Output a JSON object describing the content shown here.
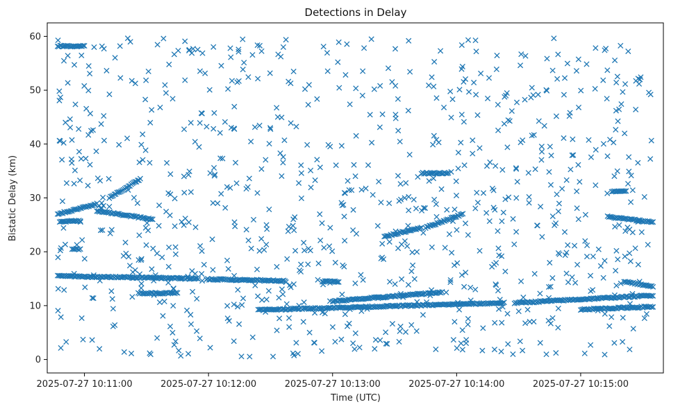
{
  "chart_data": {
    "type": "scatter",
    "title": "Detections in Delay",
    "xlabel": "Time (UTC)",
    "ylabel": "Bistatic Delay (km)",
    "x_axis_kind": "time",
    "xlim": [
      "2025-07-27 10:10:42",
      "2025-07-27 10:15:40"
    ],
    "ylim": [
      -2.5,
      62.5
    ],
    "x_ticks": [
      "2025-07-27 10:11:00",
      "2025-07-27 10:12:00",
      "2025-07-27 10:13:00",
      "2025-07-27 10:14:00",
      "2025-07-27 10:15:00"
    ],
    "y_ticks": [
      0,
      10,
      20,
      30,
      40,
      50,
      60
    ],
    "marker": "x",
    "series_color": "#1f77b4",
    "grid": false,
    "legend": "none",
    "tracks": [
      {
        "start": "2025-07-27 10:10:47",
        "end": "2025-07-27 10:11:00",
        "delay_start": 58.2,
        "delay_end": 58.2
      },
      {
        "start": "2025-07-27 10:10:47",
        "end": "2025-07-27 10:11:06",
        "delay_start": 27.0,
        "delay_end": 28.9
      },
      {
        "start": "2025-07-27 10:11:06",
        "end": "2025-07-27 10:11:33",
        "delay_start": 27.6,
        "delay_end": 26.0
      },
      {
        "start": "2025-07-27 10:11:12",
        "end": "2025-07-27 10:11:27",
        "delay_start": 30.0,
        "delay_end": 33.5
      },
      {
        "start": "2025-07-27 10:10:48",
        "end": "2025-07-27 10:10:58",
        "delay_start": 25.5,
        "delay_end": 25.8
      },
      {
        "start": "2025-07-27 10:10:54",
        "end": "2025-07-27 10:10:58",
        "delay_start": 20.5,
        "delay_end": 20.5
      },
      {
        "start": "2025-07-27 10:10:47",
        "end": "2025-07-27 10:11:55",
        "delay_start": 15.5,
        "delay_end": 15.0
      },
      {
        "start": "2025-07-27 10:11:26",
        "end": "2025-07-27 10:11:45",
        "delay_start": 12.3,
        "delay_end": 12.3
      },
      {
        "start": "2025-07-27 10:11:59",
        "end": "2025-07-27 10:12:37",
        "delay_start": 14.9,
        "delay_end": 14.6
      },
      {
        "start": "2025-07-27 10:12:55",
        "end": "2025-07-27 10:13:03",
        "delay_start": 14.5,
        "delay_end": 14.5
      },
      {
        "start": "2025-07-27 10:12:24",
        "end": "2025-07-27 10:14:23",
        "delay_start": 9.2,
        "delay_end": 10.5
      },
      {
        "start": "2025-07-27 10:14:28",
        "end": "2025-07-27 10:15:35",
        "delay_start": 10.5,
        "delay_end": 11.9
      },
      {
        "start": "2025-07-27 10:15:00",
        "end": "2025-07-27 10:15:35",
        "delay_start": 9.3,
        "delay_end": 9.8
      },
      {
        "start": "2025-07-27 10:13:00",
        "end": "2025-07-27 10:13:53",
        "delay_start": 10.8,
        "delay_end": 12.5
      },
      {
        "start": "2025-07-27 10:13:25",
        "end": "2025-07-27 10:13:43",
        "delay_start": 22.8,
        "delay_end": 24.5
      },
      {
        "start": "2025-07-27 10:13:45",
        "end": "2025-07-27 10:14:03",
        "delay_start": 24.5,
        "delay_end": 27.0
      },
      {
        "start": "2025-07-27 10:13:43",
        "end": "2025-07-27 10:13:56",
        "delay_start": 34.6,
        "delay_end": 34.6
      },
      {
        "start": "2025-07-27 10:15:13",
        "end": "2025-07-27 10:15:35",
        "delay_start": 26.5,
        "delay_end": 25.5
      },
      {
        "start": "2025-07-27 10:15:21",
        "end": "2025-07-27 10:15:35",
        "delay_start": 14.5,
        "delay_end": 13.5
      },
      {
        "start": "2025-07-27 10:15:15",
        "end": "2025-07-27 10:15:22",
        "delay_start": 31.2,
        "delay_end": 31.2
      }
    ]
  }
}
